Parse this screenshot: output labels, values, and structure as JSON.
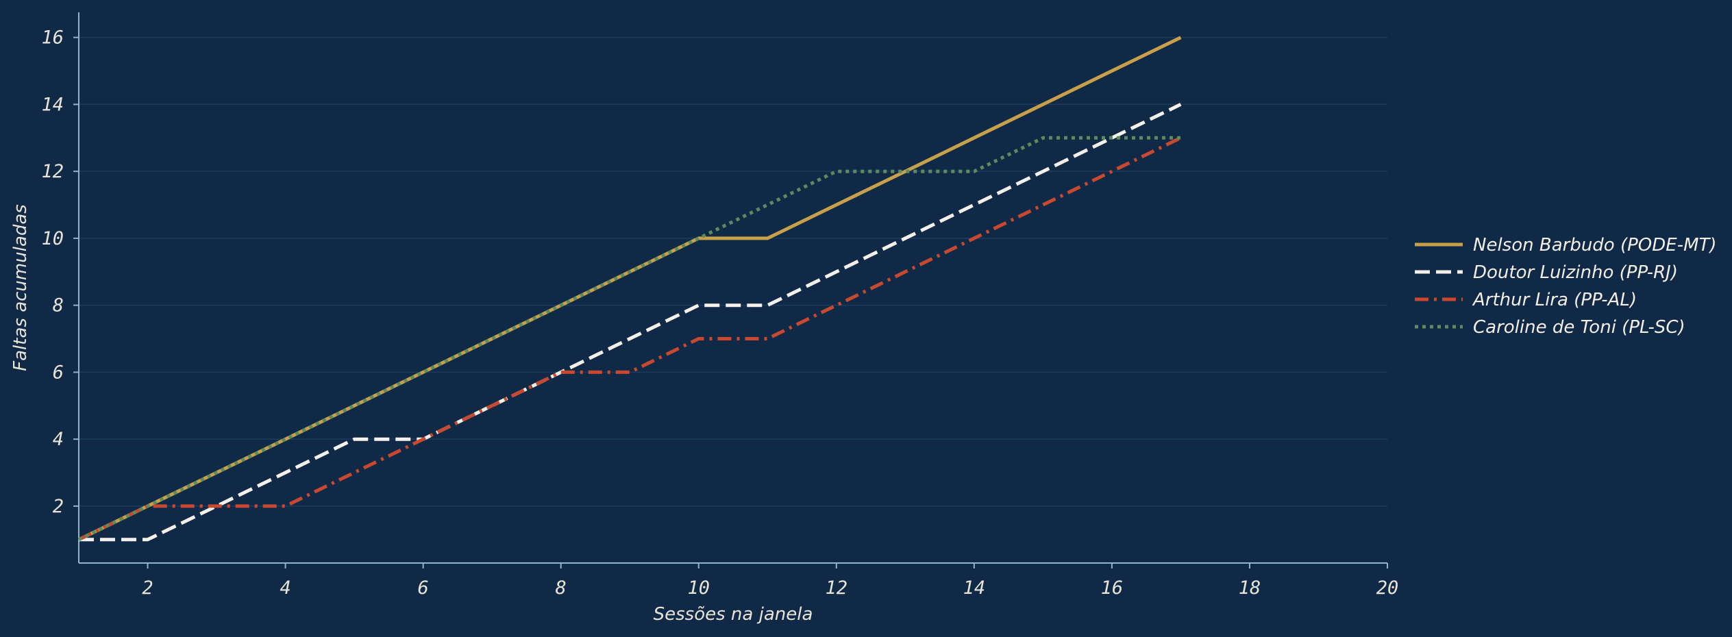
{
  "chart_data": {
    "type": "line",
    "title": "",
    "xlabel": "Sessões na janela",
    "ylabel": "Faltas acumuladas",
    "xlim": [
      1,
      20
    ],
    "ylim": [
      0.3,
      16.75
    ],
    "xticks": [
      2,
      4,
      6,
      8,
      10,
      12,
      14,
      16,
      18,
      20
    ],
    "yticks": [
      2,
      4,
      6,
      8,
      10,
      12,
      14,
      16
    ],
    "grid": "horizontal",
    "legend_position": "right",
    "background_color": "#0f2946",
    "axis_color": "#8fb4cc",
    "grid_color": "#1c3d5e",
    "x": [
      1,
      2,
      3,
      4,
      5,
      6,
      7,
      8,
      9,
      10,
      11,
      12,
      13,
      14,
      15,
      16,
      17
    ],
    "series": [
      {
        "name": "Nelson Barbudo (PODE-MT)",
        "color": "#c9a04a",
        "style": "solid",
        "values": [
          1,
          2,
          3,
          4,
          5,
          6,
          7,
          8,
          9,
          10,
          10,
          11,
          12,
          13,
          14,
          15,
          16
        ]
      },
      {
        "name": "Doutor Luizinho (PP-RJ)",
        "color": "#f4f1ea",
        "style": "dashed",
        "values": [
          1,
          1,
          2,
          3,
          4,
          4,
          5,
          6,
          7,
          8,
          8,
          9,
          10,
          11,
          12,
          13,
          14
        ]
      },
      {
        "name": "Arthur Lira (PP-AL)",
        "color": "#c8492f",
        "style": "dashdot",
        "values": [
          1,
          2,
          2,
          2,
          3,
          4,
          5,
          6,
          6,
          7,
          7,
          8,
          9,
          10,
          11,
          12,
          13
        ]
      },
      {
        "name": "Caroline de Toni (PL-SC)",
        "color": "#5f8a5e",
        "style": "dotted",
        "values": [
          1,
          2,
          3,
          4,
          5,
          6,
          7,
          8,
          9,
          10,
          11,
          12,
          12,
          12,
          13,
          13,
          13
        ]
      }
    ]
  }
}
